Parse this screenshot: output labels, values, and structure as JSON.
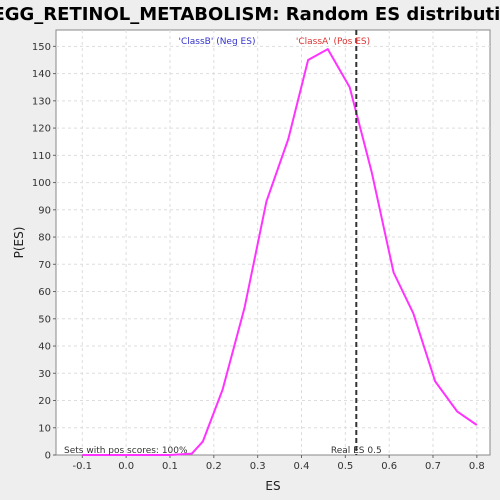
{
  "chart_data": {
    "type": "line",
    "title": "KEGG_RETINOL_METABOLISM: Random ES distribution",
    "xlabel": "ES",
    "ylabel": "P(ES)",
    "xlim": [
      -0.16,
      0.83
    ],
    "ylim": [
      0,
      156
    ],
    "x_ticks": [
      "-0.1",
      "0.0",
      "0.1",
      "0.2",
      "0.3",
      "0.4",
      "0.5",
      "0.6",
      "0.7",
      "0.8"
    ],
    "y_ticks": [
      "0",
      "10",
      "20",
      "30",
      "40",
      "50",
      "60",
      "70",
      "80",
      "90",
      "100",
      "110",
      "120",
      "130",
      "140",
      "150"
    ],
    "grid": true,
    "series": [
      {
        "color": "#ff33ff",
        "x": [
          -0.1,
          -0.05,
          0.0,
          0.05,
          0.1,
          0.15,
          0.175,
          0.22,
          0.27,
          0.32,
          0.37,
          0.415,
          0.46,
          0.51,
          0.56,
          0.61,
          0.655,
          0.705,
          0.755,
          0.8
        ],
        "y": [
          0,
          0,
          0,
          0,
          0,
          0.5,
          5,
          24,
          54,
          93,
          116,
          145,
          149,
          135,
          104,
          67,
          52,
          27,
          16,
          11
        ]
      }
    ],
    "real_es": {
      "x": 0.525,
      "label": "Real ES 0.5",
      "color": "#333333"
    },
    "annotations": {
      "neg_label": "'ClassB' (Neg ES)",
      "neg_color": "#3333cc",
      "pos_label": "'ClassA' (Pos ES)",
      "pos_color": "#dd3333",
      "pos_scores_note": "Sets with pos scores: 100%"
    }
  }
}
